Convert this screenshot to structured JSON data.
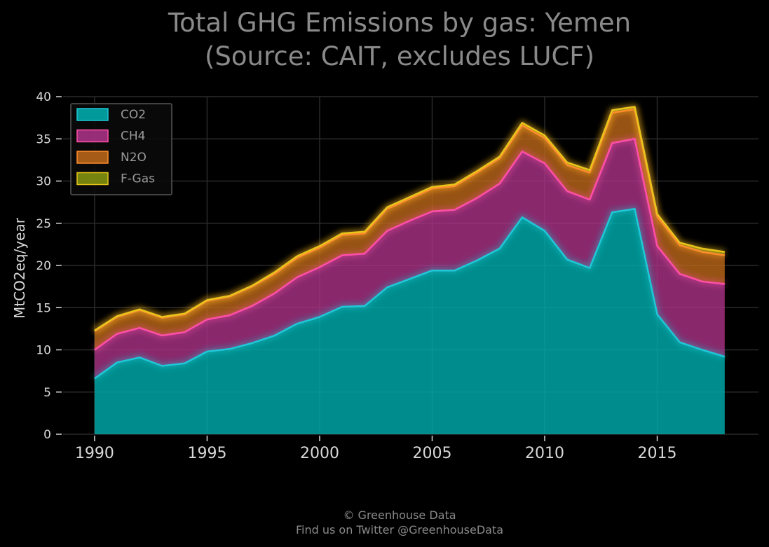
{
  "chart_data": {
    "type": "area",
    "stacked": true,
    "title_lines": [
      "Total GHG Emissions by gas: Yemen",
      "(Source: CAIT, excludes LUCF)"
    ],
    "xlabel": "",
    "ylabel": "MtCO2eq/year",
    "xlim": [
      1988.6,
      2019.5
    ],
    "ylim": [
      0,
      40
    ],
    "x_ticks": [
      1990,
      1995,
      2000,
      2005,
      2010,
      2015
    ],
    "y_ticks": [
      0,
      5,
      10,
      15,
      20,
      25,
      30,
      35,
      40
    ],
    "grid": true,
    "legend_position": "top-left",
    "x": [
      1990,
      1991,
      1992,
      1993,
      1994,
      1995,
      1996,
      1997,
      1998,
      1999,
      2000,
      2001,
      2002,
      2003,
      2004,
      2005,
      2006,
      2007,
      2008,
      2009,
      2010,
      2011,
      2012,
      2013,
      2014,
      2015,
      2016,
      2017,
      2018
    ],
    "series": [
      {
        "name": "CO2",
        "color": "#00b3b3",
        "line_color": "#1fc8d8",
        "values": [
          6.6,
          8.5,
          9.1,
          8.1,
          8.4,
          9.8,
          10.1,
          10.8,
          11.7,
          13.1,
          13.9,
          15.1,
          15.2,
          17.4,
          18.4,
          19.4,
          19.4,
          20.6,
          22.0,
          25.7,
          24.1,
          20.7,
          19.7,
          26.3,
          26.7,
          14.2,
          10.9,
          10.0,
          9.2
        ]
      },
      {
        "name": "CH4",
        "color": "#b0348a",
        "line_color": "#ff4fa8",
        "values": [
          3.4,
          3.4,
          3.5,
          3.6,
          3.7,
          3.8,
          4.0,
          4.4,
          5.0,
          5.5,
          5.9,
          6.1,
          6.2,
          6.7,
          6.9,
          7.0,
          7.2,
          7.4,
          7.7,
          7.8,
          8.0,
          8.1,
          8.1,
          8.2,
          8.3,
          8.1,
          8.1,
          8.1,
          8.6
        ]
      },
      {
        "name": "N2O",
        "color": "#c26a1a",
        "line_color": "#ff8c2e",
        "values": [
          2.2,
          2.0,
          2.1,
          2.1,
          2.1,
          2.2,
          2.2,
          2.3,
          2.3,
          2.3,
          2.3,
          2.4,
          2.4,
          2.6,
          2.6,
          2.7,
          2.8,
          3.0,
          3.0,
          3.1,
          3.0,
          3.1,
          3.2,
          3.6,
          3.5,
          3.5,
          3.4,
          3.5,
          3.4
        ]
      },
      {
        "name": "F-Gas",
        "color": "#8a9a10",
        "line_color": "#e8c61a",
        "values": [
          0.1,
          0.1,
          0.1,
          0.1,
          0.1,
          0.1,
          0.1,
          0.1,
          0.2,
          0.2,
          0.2,
          0.2,
          0.2,
          0.2,
          0.2,
          0.2,
          0.2,
          0.2,
          0.2,
          0.3,
          0.3,
          0.3,
          0.3,
          0.3,
          0.3,
          0.3,
          0.3,
          0.4,
          0.4
        ]
      }
    ]
  },
  "footer": {
    "line1": "© Greenhouse Data",
    "line2": "Find us on Twitter @GreenhouseData"
  },
  "colors": {
    "background": "#000000",
    "grid": "#2a2a2a",
    "title": "#8a8a8a",
    "ticks": "#d8d8d8"
  }
}
